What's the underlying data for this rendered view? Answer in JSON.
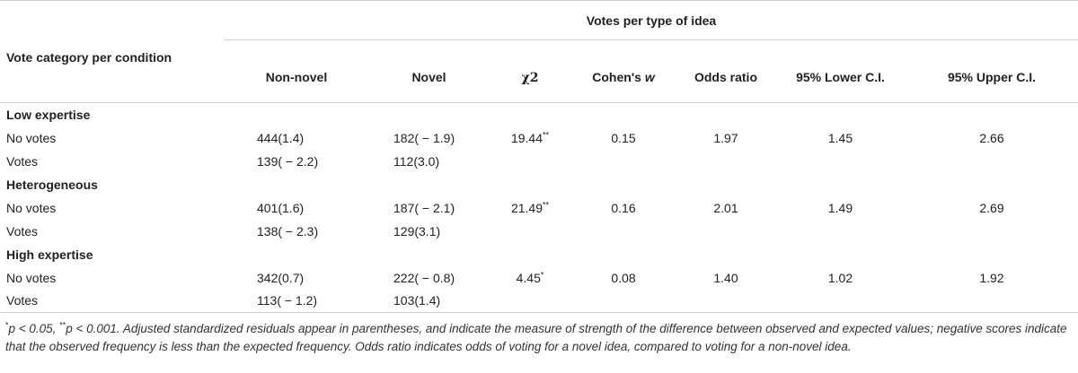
{
  "table": {
    "corner_header": "Vote category per condition",
    "group_header": "Votes per type of idea",
    "columns": [
      {
        "key": "non_novel",
        "label": "Non-novel"
      },
      {
        "key": "novel",
        "label": "Novel"
      },
      {
        "key": "chi2",
        "label": "χ2"
      },
      {
        "key": "cohens_w",
        "label": "Cohen's",
        "label_italic": "w"
      },
      {
        "key": "odds_ratio",
        "label": "Odds ratio"
      },
      {
        "key": "lower_ci",
        "label": "95% Lower C.I."
      },
      {
        "key": "upper_ci",
        "label": "95% Upper C.I."
      }
    ],
    "groups": [
      {
        "name": "Low expertise",
        "rows": [
          {
            "label": "No votes",
            "non_novel": "444(1.4)",
            "novel": "182( − 1.9)",
            "chi2": "19.44",
            "chi2_sig": "**",
            "cohens_w": "0.15",
            "odds_ratio": "1.97",
            "lower_ci": "1.45",
            "upper_ci": "2.66"
          },
          {
            "label": "Votes",
            "non_novel": "139( − 2.2)",
            "novel": "112(3.0)",
            "chi2": "",
            "chi2_sig": "",
            "cohens_w": "",
            "odds_ratio": "",
            "lower_ci": "",
            "upper_ci": ""
          }
        ]
      },
      {
        "name": "Heterogeneous",
        "rows": [
          {
            "label": "No votes",
            "non_novel": "401(1.6)",
            "novel": "187( − 2.1)",
            "chi2": "21.49",
            "chi2_sig": "**",
            "cohens_w": "0.16",
            "odds_ratio": "2.01",
            "lower_ci": "1.49",
            "upper_ci": "2.69"
          },
          {
            "label": "Votes",
            "non_novel": "138( − 2.3)",
            "novel": "129(3.1)",
            "chi2": "",
            "chi2_sig": "",
            "cohens_w": "",
            "odds_ratio": "",
            "lower_ci": "",
            "upper_ci": ""
          }
        ]
      },
      {
        "name": "High expertise",
        "rows": [
          {
            "label": "No votes",
            "non_novel": "342(0.7)",
            "novel": "222( − 0.8)",
            "chi2": "4.45",
            "chi2_sig": "*",
            "cohens_w": "0.08",
            "odds_ratio": "1.40",
            "lower_ci": "1.02",
            "upper_ci": "1.92"
          },
          {
            "label": "Votes",
            "non_novel": "113( − 1.2)",
            "novel": "103(1.4)",
            "chi2": "",
            "chi2_sig": "",
            "cohens_w": "",
            "odds_ratio": "",
            "lower_ci": "",
            "upper_ci": ""
          }
        ]
      }
    ]
  },
  "footnote": {
    "sig1_mark": "*",
    "sig1_text": "p < 0.05, ",
    "sig2_mark": "**",
    "sig2_text": "p < 0.001. ",
    "body": "Adjusted standardized residuals appear in parentheses, and indicate the measure of strength of the difference between observed and expected values; negative scores indicate that the observed frequency is less than the expected frequency. Odds ratio indicates odds of voting for a novel idea, compared to voting for a non-novel idea."
  }
}
